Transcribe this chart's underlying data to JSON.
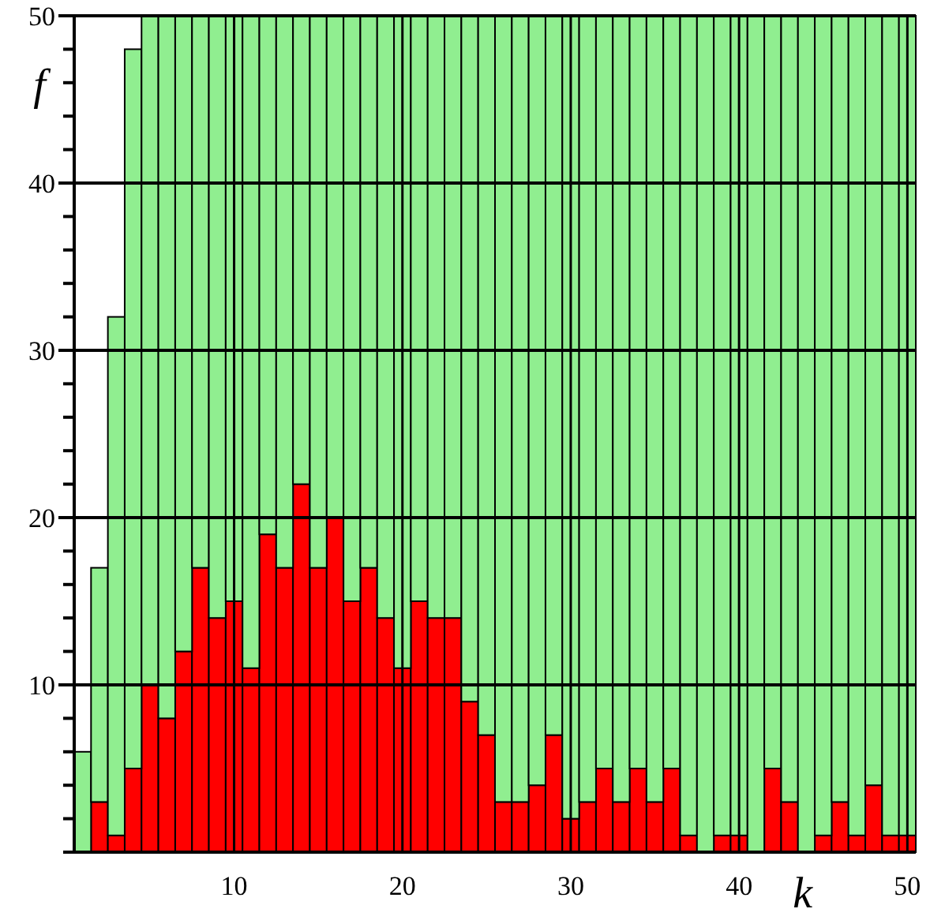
{
  "chart_data": {
    "type": "bar",
    "xlabel": "k",
    "ylabel": "f",
    "x": [
      1,
      2,
      3,
      4,
      5,
      6,
      7,
      8,
      9,
      10,
      11,
      12,
      13,
      14,
      15,
      16,
      17,
      18,
      19,
      20,
      21,
      22,
      23,
      24,
      25,
      26,
      27,
      28,
      29,
      30,
      31,
      32,
      33,
      34,
      35,
      36,
      37,
      38,
      39,
      40,
      41,
      42,
      43,
      44,
      45,
      46,
      47,
      48,
      49,
      50
    ],
    "series": [
      {
        "color": "#ff0000",
        "values": [
          0,
          3,
          1,
          5,
          10,
          8,
          12,
          17,
          14,
          15,
          11,
          19,
          17,
          22,
          17,
          20,
          15,
          17,
          14,
          11,
          15,
          14,
          14,
          9,
          7,
          3,
          3,
          4,
          7,
          2,
          3,
          5,
          3,
          5,
          3,
          5,
          1,
          0,
          1,
          1,
          0,
          5,
          3,
          0,
          1,
          3,
          1,
          4,
          1,
          1
        ]
      },
      {
        "color": "#90ee90",
        "values": [
          6,
          14,
          31,
          43,
          40,
          42,
          38,
          33,
          36,
          35,
          39,
          31,
          33,
          28,
          33,
          30,
          35,
          33,
          36,
          39,
          35,
          36,
          36,
          41,
          43,
          47,
          47,
          46,
          43,
          48,
          47,
          45,
          47,
          45,
          47,
          45,
          49,
          50,
          49,
          49,
          50,
          45,
          47,
          50,
          49,
          47,
          49,
          46,
          49,
          49
        ]
      }
    ],
    "stacked": true,
    "xlim": [
      0.5,
      50.5
    ],
    "xticks": [
      10,
      20,
      30,
      40,
      50
    ],
    "ylim": [
      0,
      50
    ],
    "yticks": [
      {
        "value": 0,
        "label": null
      },
      {
        "value": 2,
        "label": null
      },
      {
        "value": 4,
        "label": null
      },
      {
        "value": 6,
        "label": null
      },
      {
        "value": 8,
        "label": null
      },
      10,
      {
        "value": 12,
        "label": null
      },
      {
        "value": 14,
        "label": null
      },
      {
        "value": 16,
        "label": null
      },
      {
        "value": 18,
        "label": null
      },
      20,
      {
        "value": 22,
        "label": null
      },
      {
        "value": 24,
        "label": null
      },
      {
        "value": 26,
        "label": null
      },
      {
        "value": 28,
        "label": null
      },
      30,
      {
        "value": 32,
        "label": null
      },
      {
        "value": 34,
        "label": null
      },
      {
        "value": 36,
        "label": null
      },
      {
        "value": 38,
        "label": null
      },
      40,
      {
        "value": 42,
        "label": null
      },
      {
        "value": 44,
        "label": null
      },
      {
        "value": 46,
        "label": null
      },
      {
        "value": 48,
        "label": null
      },
      50
    ],
    "grid": true
  }
}
